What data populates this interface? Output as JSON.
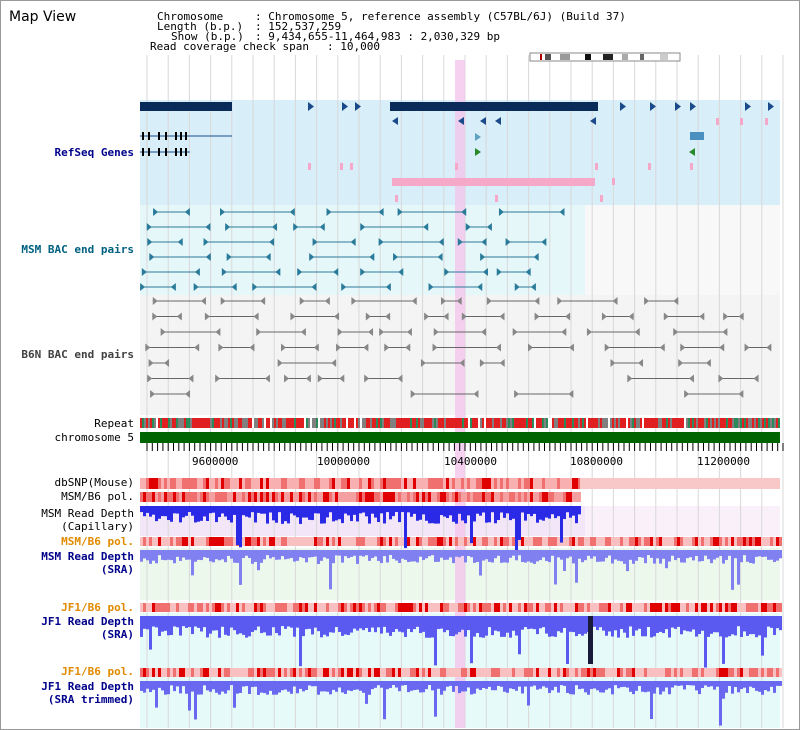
{
  "title": "Map View",
  "info": {
    "chromosome_key": "Chromosome",
    "chromosome_val": ": Chromosome 5, reference assembly (C57BL/6J) (Build 37)",
    "length_key": "Length (b.p.)",
    "length_val": ": 152,537,259",
    "show_key": "Show (b.p.)",
    "show_val": ": 9,434,655-11,464,983 : 2,030,329 bp",
    "span_key": "Read coverage check span",
    "span_val": ": 10,000"
  },
  "tracks": {
    "refseq": "RefSeq Genes",
    "msm_bac": "MSM BAC end pairs",
    "b6n_bac": "B6N BAC end pairs",
    "repeat": "Repeat",
    "chromosome": "chromosome 5",
    "dbsnp": "dbSNP(Mouse)",
    "msm_b6_pol": "MSM/B6 pol.",
    "msm_depth_cap_1": "MSM Read Depth",
    "msm_depth_cap_2": "(Capillary)",
    "msm_b6_pol_2": "MSM/B6 pol.",
    "msm_depth_sra_1": "MSM Read Depth",
    "msm_depth_sra_2": "(SRA)",
    "jf1_b6_pol": "JF1/B6 pol.",
    "jf1_depth_sra_1": "JF1 Read Depth",
    "jf1_depth_sra_2": "(SRA)",
    "jf1_b6_pol_2": "JF1/B6 pol.",
    "jf1_depth_trim_1": "JF1 Read Depth",
    "jf1_depth_trim_2": "(SRA trimmed)"
  },
  "axis": {
    "ticks": [
      "9600000",
      "10000000",
      "10400000",
      "10800000",
      "11200000"
    ],
    "range_bp": [
      9434655,
      11464983
    ],
    "tick_values": [
      9600000,
      10000000,
      10400000,
      10800000,
      11200000
    ]
  },
  "colors": {
    "refseq_bg": "#d8eef9",
    "bac_bg": "#e6f7fa",
    "b6n_bg": "#f4f4f4",
    "highlight": "#f4c6ec",
    "gene_dark": "#0a2a5a",
    "gene_pink": "#f6a8c8",
    "chromosome_bar": "#006400",
    "label_blue": "#00008b",
    "label_teal": "#006080",
    "label_gray": "#404040",
    "label_orange": "#e08a00",
    "depth_blue": "#2a2ae6"
  }
}
